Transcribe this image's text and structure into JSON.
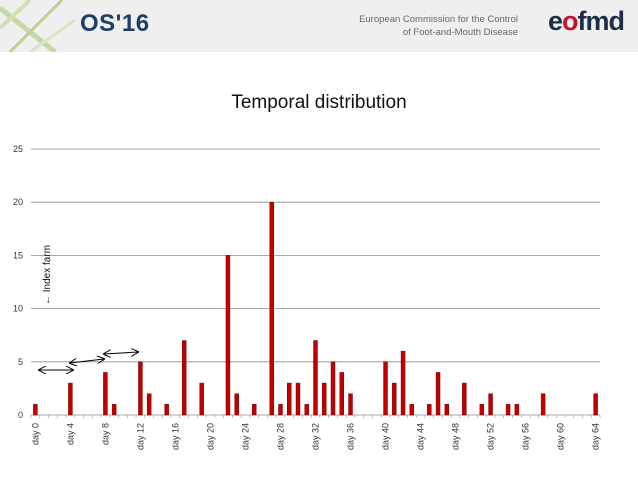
{
  "header": {
    "event": "OS'16",
    "org_line1": "European Commission for the Control",
    "org_line2": "of Foot-and-Mouth Disease",
    "logo_pre": "e",
    "logo_mid": "o",
    "logo_post": "fmd"
  },
  "chart_data": {
    "type": "bar",
    "title": "Temporal distribution",
    "xlabel": "",
    "ylabel": "",
    "ylim": [
      0,
      25
    ],
    "yticks": [
      0,
      5,
      10,
      15,
      20,
      25
    ],
    "grid": true,
    "bar_color": "#c00000",
    "x": [
      0,
      1,
      2,
      3,
      4,
      5,
      6,
      7,
      8,
      9,
      10,
      11,
      12,
      13,
      14,
      15,
      16,
      17,
      18,
      19,
      20,
      21,
      22,
      23,
      24,
      25,
      26,
      27,
      28,
      29,
      30,
      31,
      32,
      33,
      34,
      35,
      36,
      37,
      38,
      39,
      40,
      41,
      42,
      43,
      44,
      45,
      46,
      47,
      48,
      49,
      50,
      51,
      52,
      53,
      54,
      55,
      56,
      57,
      58,
      59,
      60,
      61,
      62,
      63,
      64
    ],
    "values": [
      1,
      0,
      0,
      0,
      3,
      0,
      0,
      0,
      4,
      1,
      0,
      0,
      5,
      2,
      0,
      1,
      0,
      7,
      0,
      3,
      0,
      0,
      15,
      2,
      0,
      1,
      0,
      20,
      1,
      3,
      3,
      1,
      7,
      3,
      5,
      4,
      2,
      0,
      0,
      0,
      5,
      3,
      6,
      1,
      0,
      1,
      4,
      1,
      0,
      3,
      0,
      1,
      2,
      0,
      1,
      1,
      0,
      0,
      2,
      0,
      0,
      0,
      0,
      0,
      2
    ],
    "tick_labels": [
      "day 0",
      "day 4",
      "day 8",
      "day 12",
      "day 16",
      "day 20",
      "day 24",
      "day 28",
      "day 32",
      "day 36",
      "day 40",
      "day 44",
      "day 48",
      "day 52",
      "day 56",
      "day 60",
      "day 64"
    ],
    "annotation": "← Index farm"
  }
}
